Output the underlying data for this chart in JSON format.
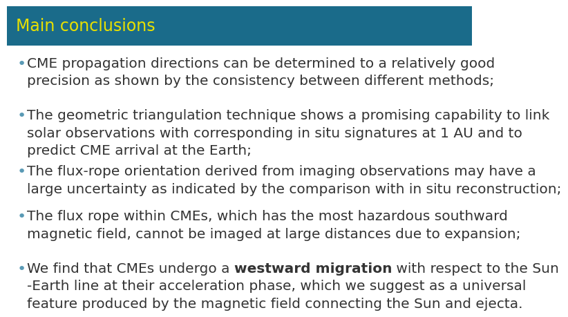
{
  "title": "Main conclusions",
  "title_bg_color": "#1a6b8a",
  "title_text_color": "#e8e000",
  "background_color": "#ffffff",
  "bullet_color": "#5a9ab5",
  "text_color": "#333333",
  "bullets": [
    {
      "lines": [
        "CME propagation directions can be determined to a relatively good",
        "precision as shown by the consistency between different methods;"
      ],
      "mixed": false
    },
    {
      "lines": [
        "The geometric triangulation technique shows a promising capability to link",
        "solar observations with corresponding in situ signatures at 1 AU and to",
        "predict CME arrival at the Earth;"
      ],
      "mixed": false
    },
    {
      "lines": [
        "The flux-rope orientation derived from imaging observations may have a",
        "large uncertainty as indicated by the comparison with in situ reconstruction;"
      ],
      "mixed": false
    },
    {
      "lines": [
        "The flux rope within CMEs, which has the most hazardous southward",
        "magnetic field, cannot be imaged at large distances due to expansion;"
      ],
      "mixed": false
    },
    {
      "mixed": true,
      "line_parts": [
        [
          {
            "text": "We find that CMEs undergo a ",
            "bold": false
          },
          {
            "text": "westward migration",
            "bold": true
          },
          {
            "text": " with respect to the Sun",
            "bold": false
          }
        ],
        [
          {
            "text": "-Earth line at their acceleration phase, which we suggest as a universal",
            "bold": false
          }
        ],
        [
          {
            "text": "feature produced by the magnetic field connecting the Sun and ejecta.",
            "bold": false
          }
        ]
      ]
    }
  ],
  "title_fontsize": 17,
  "body_fontsize": 14.5,
  "bullet_fontsize": 16
}
